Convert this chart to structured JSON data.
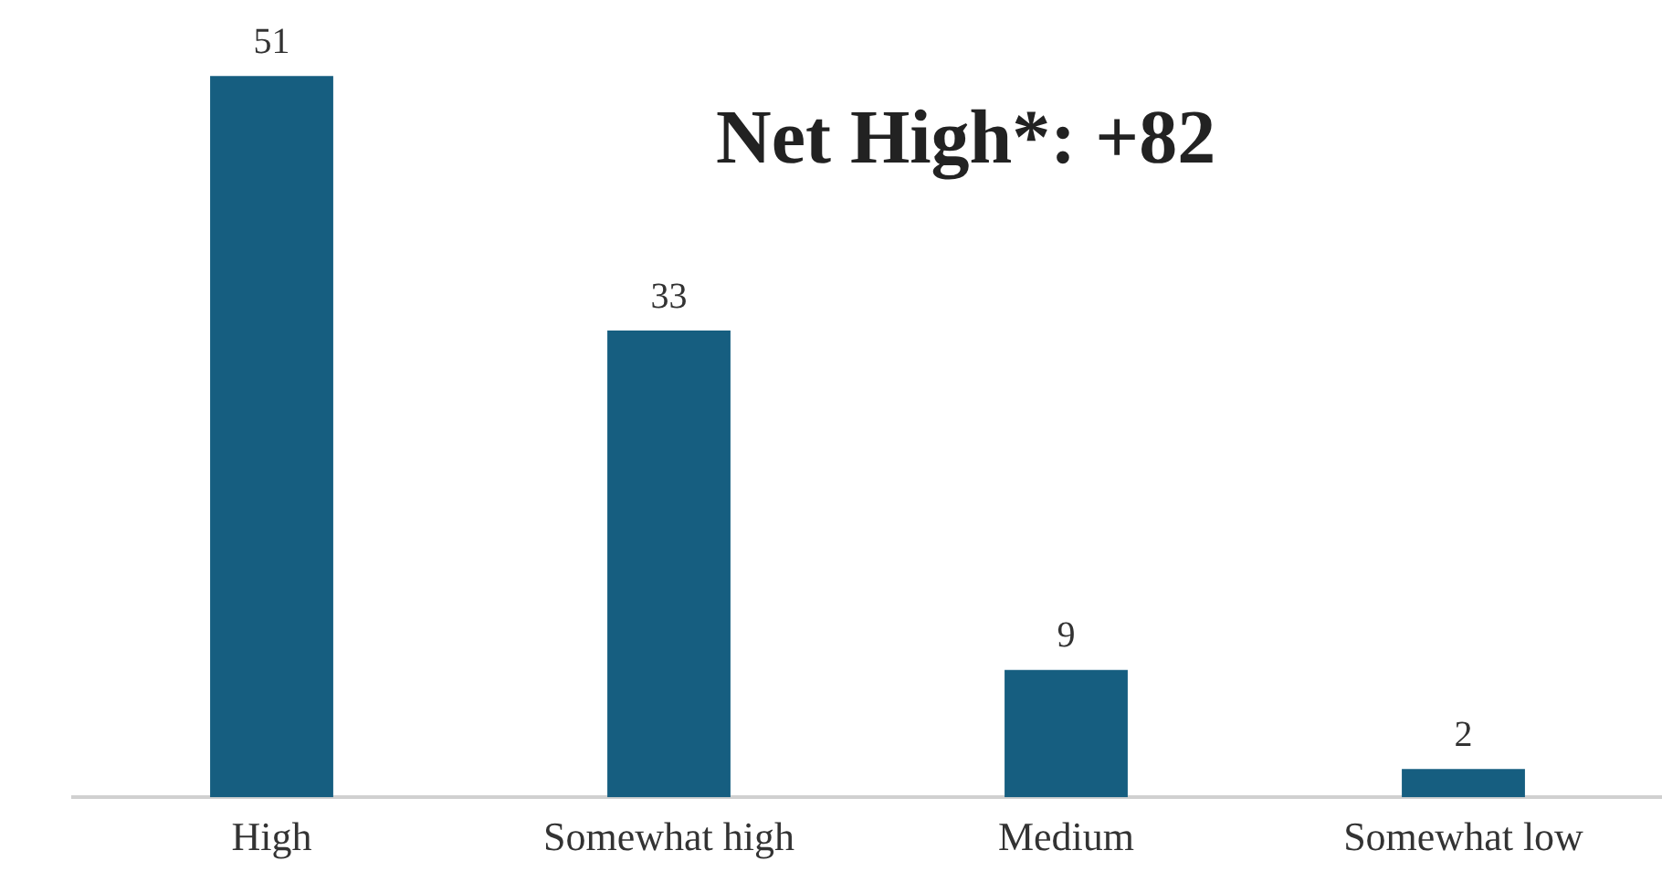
{
  "chart_data": {
    "type": "bar",
    "title": "Net High*: +82",
    "categories": [
      "High",
      "Somewhat high",
      "Medium",
      "Somewhat low"
    ],
    "values": [
      51,
      33,
      9,
      2
    ],
    "color": "#165e80",
    "tick_labels": "x",
    "data_labels": true,
    "grid": false,
    "legend": false
  }
}
